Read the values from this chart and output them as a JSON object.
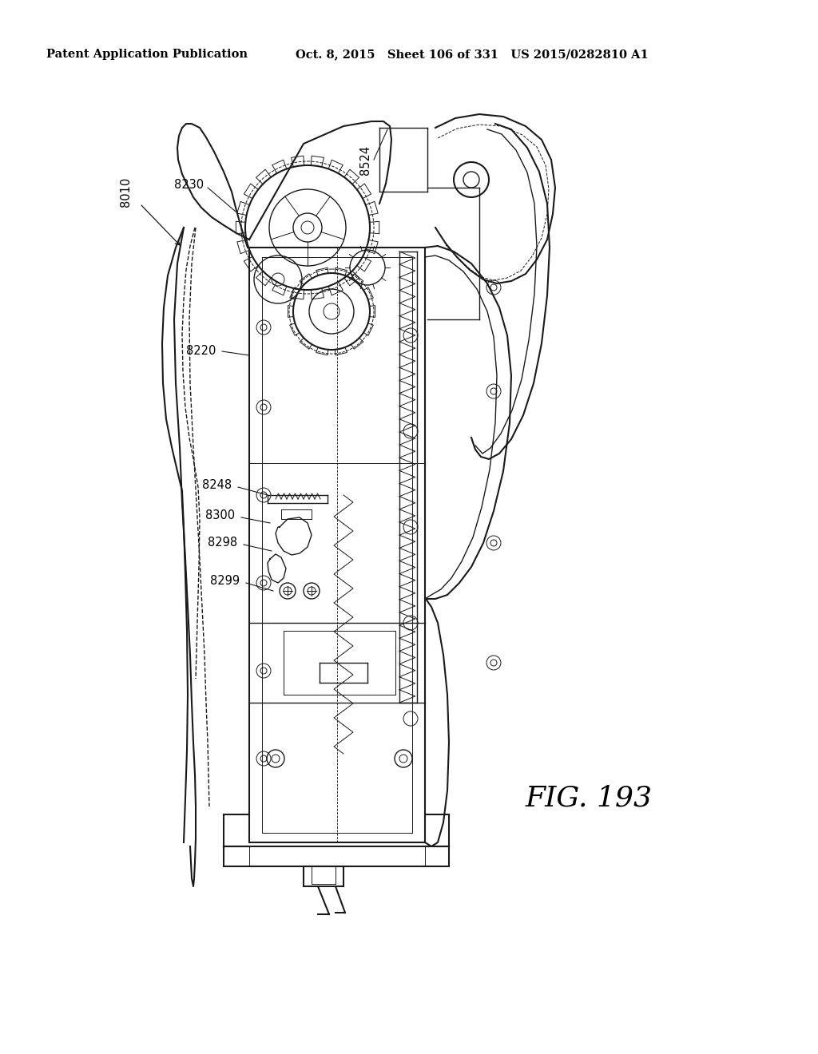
{
  "background_color": "#ffffff",
  "header_left": "Patent Application Publication",
  "header_mid": "Oct. 8, 2015   Sheet 106 of 331   US 2015/0282810 A1",
  "fig_label": "FIG. 193",
  "header_fontsize": 10.5,
  "fig_fontsize": 26
}
